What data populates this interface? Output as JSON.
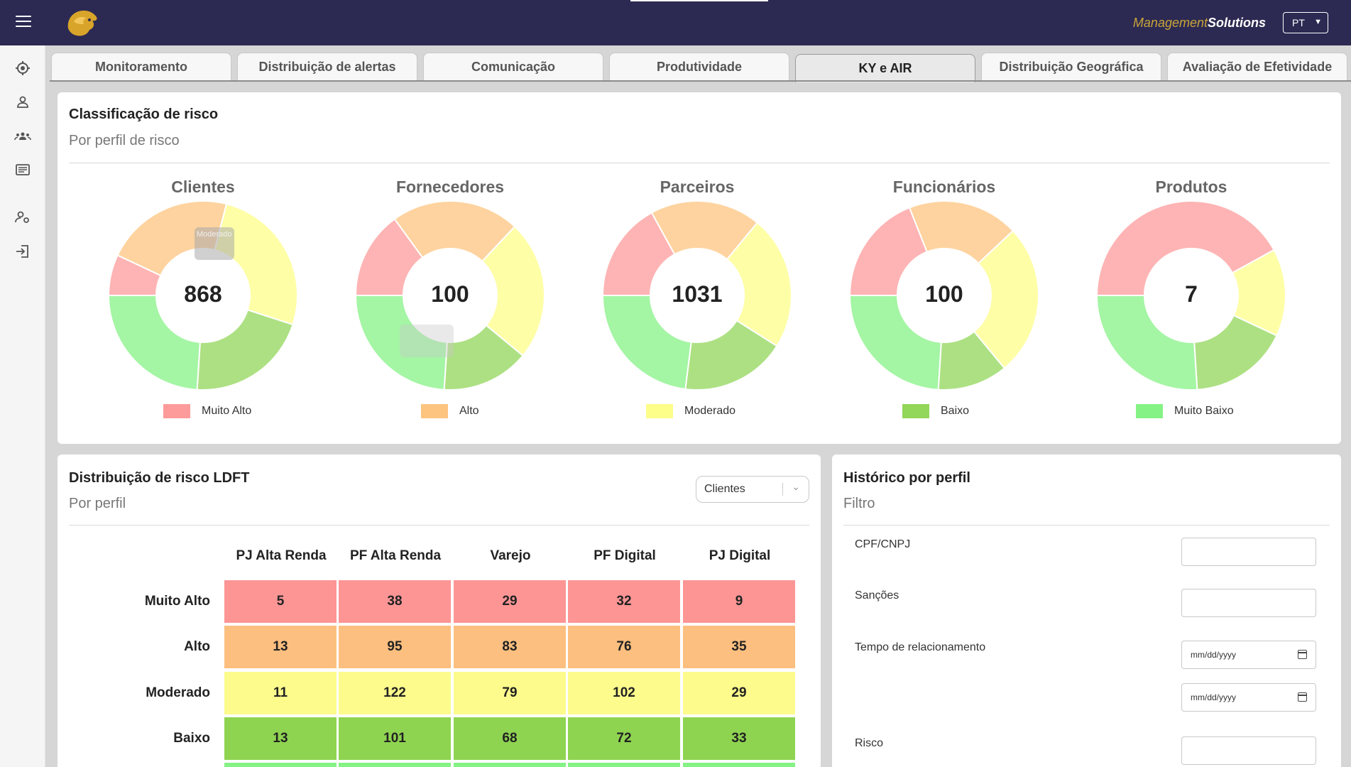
{
  "header": {
    "brand_part1": "Management",
    "brand_part2": "Solutions",
    "language": "PT",
    "logo_icon": "lion-logo-icon"
  },
  "sidebar": {
    "icons": [
      "menu-icon",
      "target-icon",
      "user-icon",
      "group-icon",
      "list-icon",
      "user-settings-icon",
      "logout-icon"
    ]
  },
  "tabs": [
    {
      "label": "Monitoramento",
      "active": false
    },
    {
      "label": "Distribuição de alertas",
      "active": false
    },
    {
      "label": "Comunicação",
      "active": false
    },
    {
      "label": "Produtividade",
      "active": false
    },
    {
      "label": "KY e AIR",
      "active": true
    },
    {
      "label": "Distribuição Geográfica",
      "active": false
    },
    {
      "label": "Avaliação de Efetividade",
      "active": false
    }
  ],
  "risk_panel": {
    "title": "Classificação de risco",
    "subtitle": "Por perfil de risco",
    "tooltip_text": "Moderado",
    "legend": [
      {
        "label": "Muito Alto",
        "color": "#fd9b9b"
      },
      {
        "label": "Alto",
        "color": "#fdc47f"
      },
      {
        "label": "Moderado",
        "color": "#fdfd8a"
      },
      {
        "label": "Baixo",
        "color": "#92d65a"
      },
      {
        "label": "Muito Baixo",
        "color": "#85f285"
      }
    ]
  },
  "chart_data": [
    {
      "type": "pie",
      "title": "Clientes",
      "total": "868",
      "categories": [
        "Muito Alto",
        "Alto",
        "Moderado",
        "Baixo",
        "Muito Baixo"
      ],
      "values": [
        7,
        22,
        26,
        21,
        24
      ]
    },
    {
      "type": "pie",
      "title": "Fornecedores",
      "total": "100",
      "categories": [
        "Muito Alto",
        "Alto",
        "Moderado",
        "Baixo",
        "Muito Baixo"
      ],
      "values": [
        15,
        22,
        24,
        15,
        24
      ]
    },
    {
      "type": "pie",
      "title": "Parceiros",
      "total": "1031",
      "categories": [
        "Muito Alto",
        "Alto",
        "Moderado",
        "Baixo",
        "Muito Baixo"
      ],
      "values": [
        17,
        19,
        23,
        18,
        23
      ]
    },
    {
      "type": "pie",
      "title": "Funcionários",
      "total": "100",
      "categories": [
        "Muito Alto",
        "Alto",
        "Moderado",
        "Baixo",
        "Muito Baixo"
      ],
      "values": [
        19,
        19,
        26,
        12,
        24
      ]
    },
    {
      "type": "pie",
      "title": "Produtos",
      "total": "7",
      "categories": [
        "Muito Alto",
        "Alto",
        "Moderado",
        "Baixo",
        "Muito Baixo"
      ],
      "values": [
        42,
        0,
        15,
        17,
        26
      ]
    }
  ],
  "dist_panel": {
    "title": "Distribuição de risco LDFT",
    "subtitle": "Por perfil",
    "select_value": "Clientes",
    "columns": [
      "PJ Alta Renda",
      "PF Alta Renda",
      "Varejo",
      "PF Digital",
      "PJ Digital"
    ],
    "rows": [
      {
        "label": "Muito Alto",
        "color": "#fd9595",
        "values": [
          "5",
          "38",
          "29",
          "32",
          "9"
        ]
      },
      {
        "label": "Alto",
        "color": "#fdbf7f",
        "values": [
          "13",
          "95",
          "83",
          "76",
          "35"
        ]
      },
      {
        "label": "Moderado",
        "color": "#fdfb8c",
        "values": [
          "11",
          "122",
          "79",
          "102",
          "29"
        ]
      },
      {
        "label": "Baixo",
        "color": "#8fd451",
        "values": [
          "13",
          "101",
          "68",
          "72",
          "33"
        ]
      }
    ]
  },
  "history_panel": {
    "title": "Histórico por perfil",
    "subtitle": "Filtro",
    "fields": {
      "cpf_label": "CPF/CNPJ",
      "sancoes_label": "Sanções",
      "tempo_label": "Tempo de relacionamento",
      "risco_label": "Risco",
      "date_placeholder_1": "mm/dd/yyyy",
      "date_placeholder_2": "mm/dd/yyyy"
    }
  }
}
